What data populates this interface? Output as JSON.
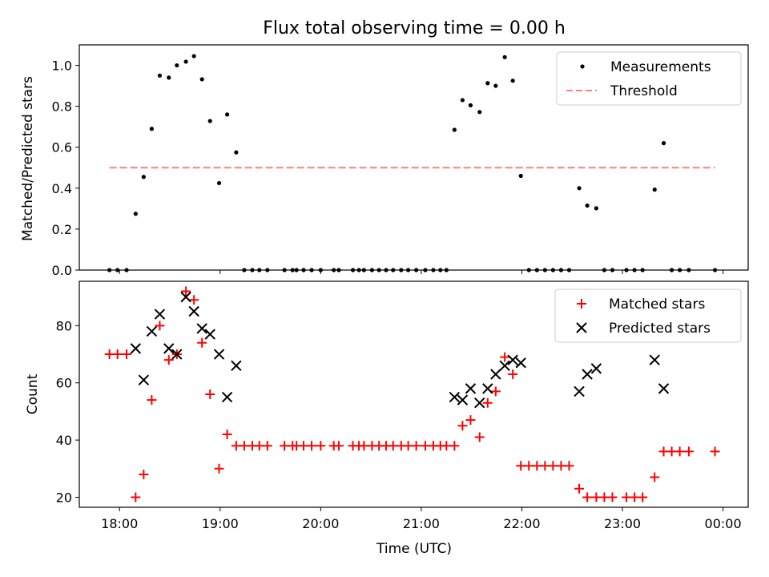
{
  "chart_data": [
    {
      "type": "scatter",
      "title": "Flux total observing time = 0.00 h",
      "xlabel": "",
      "ylabel": "Matched/Predicted stars",
      "xlim": [
        17.6,
        24.25
      ],
      "ylim": [
        0,
        1.1
      ],
      "yticks": [
        0.0,
        0.2,
        0.4,
        0.6,
        0.8,
        1.0
      ],
      "ytick_labels": [
        "0.0",
        "0.2",
        "0.4",
        "0.6",
        "0.8",
        "1.0"
      ],
      "legend_position": "upper right",
      "series": [
        {
          "name": "Measurements",
          "color": "#000000",
          "marker": "dot",
          "x": [
            17.9,
            17.98,
            18.07,
            18.16,
            18.24,
            18.32,
            18.4,
            18.49,
            18.57,
            18.66,
            18.74,
            18.82,
            18.9,
            18.99,
            19.07,
            19.16,
            19.24,
            19.32,
            19.39,
            19.47,
            19.64,
            19.72,
            19.76,
            19.83,
            19.91,
            20.0,
            20.13,
            20.18,
            20.32,
            20.38,
            20.43,
            20.51,
            20.58,
            20.65,
            20.72,
            20.8,
            20.87,
            20.95,
            21.04,
            21.12,
            21.19,
            21.25,
            21.33,
            21.41,
            21.49,
            21.58,
            21.66,
            21.74,
            21.83,
            21.91,
            21.99,
            22.07,
            22.15,
            22.23,
            22.31,
            22.39,
            22.47,
            22.57,
            22.65,
            22.74,
            22.82,
            22.9,
            23.04,
            23.12,
            23.2,
            23.32,
            23.41,
            23.49,
            23.57,
            23.66,
            23.92
          ],
          "y": [
            0.0,
            0.0,
            0.0,
            0.275,
            0.455,
            0.69,
            0.95,
            0.94,
            1.0,
            1.018,
            1.045,
            0.932,
            0.728,
            0.425,
            0.76,
            0.575,
            0.0,
            0.0,
            0.0,
            0.0,
            0.0,
            0.0,
            0.0,
            0.0,
            0.0,
            0.0,
            0.0,
            0.0,
            0.0,
            0.0,
            0.0,
            0.0,
            0.0,
            0.0,
            0.0,
            0.0,
            0.0,
            0.0,
            0.0,
            0.0,
            0.0,
            0.0,
            0.685,
            0.83,
            0.805,
            0.772,
            0.913,
            0.9,
            1.04,
            0.925,
            0.46,
            0.0,
            0.0,
            0.0,
            0.0,
            0.0,
            0.0,
            0.4,
            0.315,
            0.302,
            0.0,
            0.0,
            0.0,
            0.0,
            0.0,
            0.393,
            0.62,
            0.0,
            0.0,
            0.0,
            0.0
          ]
        },
        {
          "name": "Threshold",
          "color": "#ff7f7f",
          "style": "dashed",
          "x": [
            17.9,
            23.92
          ],
          "y": [
            0.5,
            0.5
          ]
        }
      ]
    },
    {
      "type": "scatter",
      "title": "",
      "xlabel": "Time (UTC)",
      "ylabel": "Count",
      "xlim": [
        17.6,
        24.25
      ],
      "ylim": [
        16.5,
        95.5
      ],
      "xticks": [
        18,
        19,
        20,
        21,
        22,
        23,
        24
      ],
      "xtick_labels": [
        "18:00",
        "19:00",
        "20:00",
        "21:00",
        "22:00",
        "23:00",
        "00:00"
      ],
      "yticks": [
        20,
        40,
        60,
        80
      ],
      "ytick_labels": [
        "20",
        "40",
        "60",
        "80"
      ],
      "legend_position": "upper right",
      "series": [
        {
          "name": "Matched stars",
          "color": "#ff0000",
          "marker": "plus",
          "x": [
            17.9,
            17.98,
            18.07,
            18.16,
            18.24,
            18.32,
            18.4,
            18.49,
            18.57,
            18.66,
            18.74,
            18.82,
            18.9,
            18.99,
            19.07,
            19.16,
            19.24,
            19.32,
            19.39,
            19.47,
            19.64,
            19.72,
            19.76,
            19.83,
            19.91,
            20.0,
            20.13,
            20.18,
            20.32,
            20.38,
            20.43,
            20.51,
            20.58,
            20.65,
            20.72,
            20.8,
            20.87,
            20.95,
            21.04,
            21.12,
            21.19,
            21.25,
            21.33,
            21.41,
            21.49,
            21.58,
            21.66,
            21.74,
            21.83,
            21.91,
            21.99,
            22.07,
            22.15,
            22.23,
            22.31,
            22.39,
            22.47,
            22.57,
            22.65,
            22.74,
            22.82,
            22.9,
            23.04,
            23.12,
            23.2,
            23.32,
            23.41,
            23.49,
            23.57,
            23.66,
            23.92
          ],
          "y": [
            70,
            70,
            70,
            20,
            28,
            54,
            80,
            68,
            70,
            92,
            89,
            74,
            56,
            30,
            42,
            38,
            38,
            38,
            38,
            38,
            38,
            38,
            38,
            38,
            38,
            38,
            38,
            38,
            38,
            38,
            38,
            38,
            38,
            38,
            38,
            38,
            38,
            38,
            38,
            38,
            38,
            38,
            38,
            45,
            47,
            41,
            53,
            57,
            69,
            63,
            31,
            31,
            31,
            31,
            31,
            31,
            31,
            23,
            20,
            20,
            20,
            20,
            20,
            20,
            20,
            27,
            36,
            36,
            36,
            36,
            36
          ]
        },
        {
          "name": "Predicted stars",
          "color": "#000000",
          "marker": "x",
          "x": [
            18.16,
            18.24,
            18.32,
            18.4,
            18.49,
            18.57,
            18.66,
            18.74,
            18.82,
            18.9,
            18.99,
            19.07,
            19.16,
            21.33,
            21.41,
            21.49,
            21.58,
            21.66,
            21.74,
            21.83,
            21.91,
            21.99,
            22.57,
            22.65,
            22.74,
            23.32,
            23.41
          ],
          "y": [
            72,
            61,
            78,
            84,
            72,
            70,
            90,
            85,
            79,
            77,
            70,
            55,
            66,
            55,
            54,
            58,
            53,
            58,
            63,
            66,
            68,
            67,
            57,
            63,
            65,
            68,
            58
          ]
        }
      ]
    }
  ]
}
